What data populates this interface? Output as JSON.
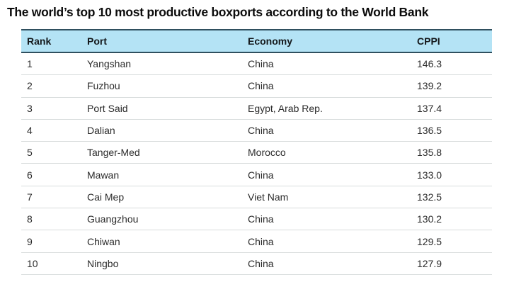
{
  "title": "The world’s top 10 most productive boxports according to the World Bank",
  "table": {
    "header": {
      "rank": "Rank",
      "port": "Port",
      "economy": "Economy",
      "cppi": "CPPI"
    },
    "rows": [
      {
        "rank": "1",
        "port": "Yangshan",
        "economy": "China",
        "cppi": "146.3"
      },
      {
        "rank": "2",
        "port": "Fuzhou",
        "economy": "China",
        "cppi": "139.2"
      },
      {
        "rank": "3",
        "port": "Port Said",
        "economy": "Egypt, Arab Rep.",
        "cppi": "137.4"
      },
      {
        "rank": "4",
        "port": "Dalian",
        "economy": "China",
        "cppi": "136.5"
      },
      {
        "rank": "5",
        "port": "Tanger-Med",
        "economy": "Morocco",
        "cppi": "135.8"
      },
      {
        "rank": "6",
        "port": "Mawan",
        "economy": "China",
        "cppi": "133.0"
      },
      {
        "rank": "7",
        "port": "Cai Mep",
        "economy": "Viet Nam",
        "cppi": "132.5"
      },
      {
        "rank": "8",
        "port": "Guangzhou",
        "economy": "China",
        "cppi": "130.2"
      },
      {
        "rank": "9",
        "port": "Chiwan",
        "economy": "China",
        "cppi": "129.5"
      },
      {
        "rank": "10",
        "port": "Ningbo",
        "economy": "China",
        "cppi": "127.9"
      }
    ]
  },
  "colors": {
    "header_background": "#b4e3f5",
    "header_border": "#2f4f5e",
    "row_separator": "#d8dcdc",
    "title_text": "#0c0c0c",
    "body_text": "#2b2b2b"
  },
  "chart_data": {
    "type": "table",
    "title": "The world’s top 10 most productive boxports according to the World Bank",
    "columns": [
      "Rank",
      "Port",
      "Economy",
      "CPPI"
    ],
    "rows": [
      [
        1,
        "Yangshan",
        "China",
        146.3
      ],
      [
        2,
        "Fuzhou",
        "China",
        139.2
      ],
      [
        3,
        "Port Said",
        "Egypt, Arab Rep.",
        137.4
      ],
      [
        4,
        "Dalian",
        "China",
        136.5
      ],
      [
        5,
        "Tanger-Med",
        "Morocco",
        135.8
      ],
      [
        6,
        "Mawan",
        "China",
        133.0
      ],
      [
        7,
        "Cai Mep",
        "Viet Nam",
        132.5
      ],
      [
        8,
        "Guangzhou",
        "China",
        130.2
      ],
      [
        9,
        "Chiwan",
        "China",
        129.5
      ],
      [
        10,
        "Ningbo",
        "China",
        127.9
      ]
    ]
  }
}
